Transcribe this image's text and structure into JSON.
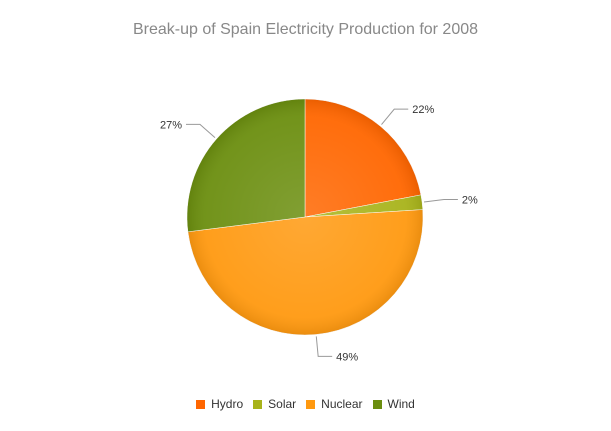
{
  "chart_data": {
    "type": "pie",
    "title": "Break-up of Spain Electricity Production for 2008",
    "categories": [
      "Hydro",
      "Solar",
      "Nuclear",
      "Wind"
    ],
    "values": [
      22,
      2,
      49,
      27
    ],
    "labels": [
      "22%",
      "2%",
      "49%",
      "27%"
    ],
    "colors": [
      "#ff6600",
      "#a8b31a",
      "#ff9910",
      "#6b8e0f"
    ],
    "legend_position": "bottom"
  },
  "legend": [
    {
      "label": "Hydro",
      "color": "#ff6600"
    },
    {
      "label": "Solar",
      "color": "#a8b31a"
    },
    {
      "label": "Nuclear",
      "color": "#ff9910"
    },
    {
      "label": "Wind",
      "color": "#6b8e0f"
    }
  ]
}
